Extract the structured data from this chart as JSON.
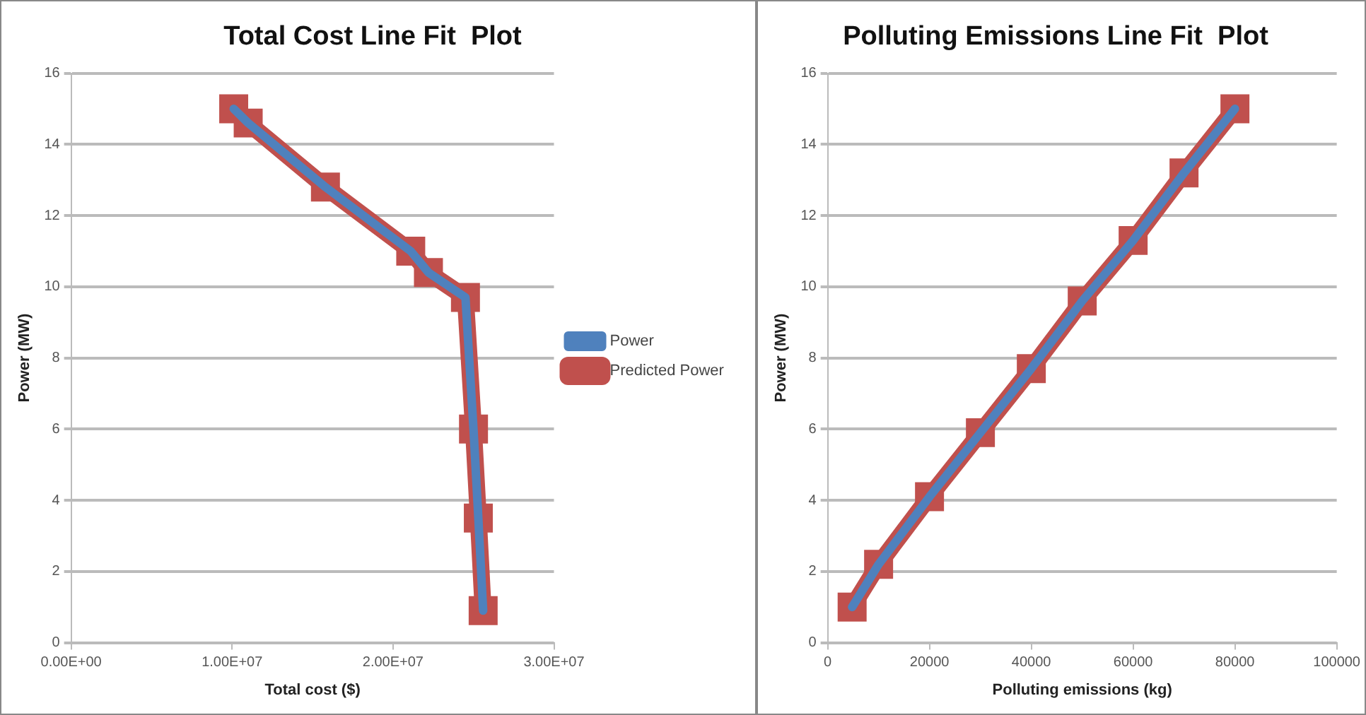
{
  "chart_data": [
    {
      "type": "line",
      "title": "Total Cost Line Fit  Plot",
      "xlabel": "Total cost ($)",
      "ylabel": "Power (MW)",
      "xlim": [
        0,
        30000000
      ],
      "xticks": [
        {
          "value": 0,
          "label": "0.00E+00"
        },
        {
          "value": 10000000,
          "label": "1.00E+07"
        },
        {
          "value": 20000000,
          "label": "2.00E+07"
        },
        {
          "value": 30000000,
          "label": "3.00E+07"
        }
      ],
      "ylim": [
        0,
        16
      ],
      "yticks": [
        0,
        2,
        4,
        6,
        8,
        10,
        12,
        14,
        16
      ],
      "grid": "y",
      "legend": "right",
      "series": [
        {
          "name": "Predicted Power",
          "color": "#c0504d",
          "marker": "square",
          "x": [
            10100000,
            11000000,
            15800000,
            21100000,
            22200000,
            24500000,
            25000000,
            25300000,
            25600000
          ],
          "values": [
            15.0,
            14.6,
            12.8,
            11.0,
            10.4,
            9.7,
            6.0,
            3.5,
            0.9
          ]
        },
        {
          "name": "Power",
          "color": "#4f81bd",
          "marker": "none",
          "x": [
            10100000,
            11000000,
            15800000,
            21100000,
            22200000,
            24500000,
            25000000,
            25300000,
            25600000
          ],
          "values": [
            15.0,
            14.6,
            12.8,
            11.0,
            10.4,
            9.7,
            6.0,
            3.5,
            0.9
          ]
        }
      ]
    },
    {
      "type": "line",
      "title": "Polluting Emissions Line Fit  Plot",
      "xlabel": "Polluting emissions (kg)",
      "ylabel": "Power (MW)",
      "xlim": [
        0,
        100000
      ],
      "xticks": [
        0,
        20000,
        40000,
        60000,
        80000,
        100000
      ],
      "ylim": [
        0,
        16
      ],
      "yticks": [
        0,
        2,
        4,
        6,
        8,
        10,
        12,
        14,
        16
      ],
      "grid": "y",
      "series": [
        {
          "color": "#c0504d",
          "marker": "square",
          "x": [
            4800,
            10000,
            20000,
            30000,
            40000,
            50000,
            60000,
            70000,
            80000
          ],
          "values": [
            1.0,
            2.2,
            4.1,
            5.9,
            7.7,
            9.6,
            11.3,
            13.2,
            15.0
          ]
        },
        {
          "color": "#4f81bd",
          "marker": "none",
          "x": [
            4800,
            10000,
            20000,
            30000,
            40000,
            50000,
            60000,
            70000,
            80000
          ],
          "values": [
            1.0,
            2.2,
            4.1,
            5.9,
            7.7,
            9.6,
            11.3,
            13.2,
            15.0
          ]
        }
      ]
    }
  ]
}
